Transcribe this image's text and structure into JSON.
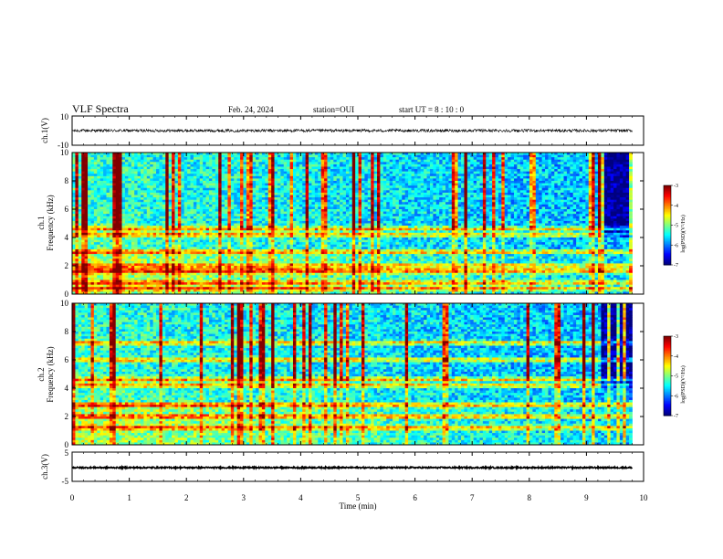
{
  "header": {
    "title": "VLF Spectra",
    "date": "Feb. 24, 2024",
    "station": "station=OUI",
    "start": "start UT =  8 : 10 : 0"
  },
  "chart_data": [
    {
      "type": "line",
      "id": "ch1-waveform",
      "ylabel": "ch.1(V)",
      "xlim": [
        0,
        10
      ],
      "ylim": [
        -10,
        10
      ],
      "yticks": [
        "10",
        "-10"
      ],
      "description_level": 0.0,
      "amplitude": 1.0,
      "color": "#000000"
    },
    {
      "type": "heatmap",
      "id": "ch1-spectrogram",
      "ylabel": "ch.1\nFrequency (kHz)",
      "ylabel_lines": [
        "ch.1",
        "Frequency (kHz)"
      ],
      "xlim": [
        0,
        10
      ],
      "ylim": [
        0,
        10
      ],
      "yticks": [
        "0",
        "2",
        "4",
        "6",
        "8",
        "10"
      ],
      "colorbar": {
        "label": "log(PSD)(V²/Hz)",
        "range": [
          -7,
          -3
        ],
        "ticks": [
          "-3",
          "-4",
          "-5",
          "-6",
          "-7"
        ],
        "colormap": "jet"
      },
      "bands_khz": [
        0.4,
        0.8,
        1.6,
        1.8,
        2.0,
        3.0,
        4.2,
        4.6
      ]
    },
    {
      "type": "heatmap",
      "id": "ch2-spectrogram",
      "ylabel": "ch.2\nFrequency (kHz)",
      "ylabel_lines": [
        "ch.2",
        "Frequency (kHz)"
      ],
      "xlim": [
        0,
        10
      ],
      "ylim": [
        0,
        10
      ],
      "yticks": [
        "0",
        "2",
        "4",
        "6",
        "8",
        "10"
      ],
      "colorbar": {
        "label": "log(PSD)(V²/Hz)",
        "range": [
          -7,
          -3
        ],
        "ticks": [
          "-3",
          "-4",
          "-5",
          "-6",
          "-7"
        ],
        "colormap": "jet"
      },
      "bands_khz": [
        1.2,
        2.0,
        2.8,
        4.2,
        4.6,
        6.0,
        7.2
      ]
    },
    {
      "type": "line",
      "id": "ch3-waveform",
      "ylabel": "ch.3(V)",
      "xlim": [
        0,
        10
      ],
      "ylim": [
        -5,
        5
      ],
      "yticks": [
        "5",
        "-5"
      ],
      "description_level": -0.3,
      "amplitude": 0.25,
      "color": "#000000"
    }
  ],
  "xaxis": {
    "label": "Time (min)",
    "ticks": [
      "0",
      "1",
      "2",
      "3",
      "4",
      "5",
      "6",
      "7",
      "8",
      "9",
      "10"
    ],
    "range": [
      0,
      10
    ],
    "data_end": 9.8
  },
  "colors": {
    "background": "#ffffff",
    "axes": "#000000"
  }
}
